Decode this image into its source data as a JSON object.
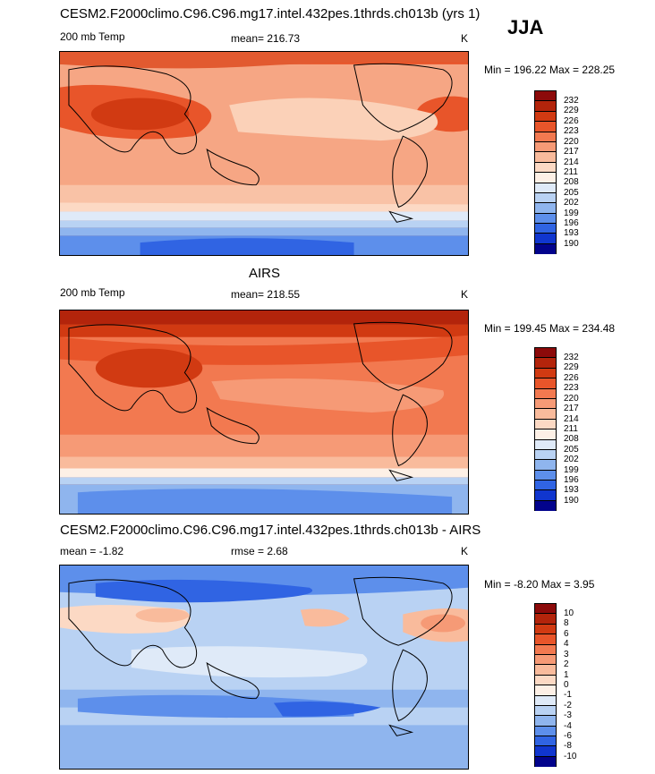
{
  "season": "JJA",
  "panels": [
    {
      "title": "CESM2.F2000climo.C96.C96.mg17.intel.432pes.1thrds.ch013b (yrs 1)",
      "left_label": "200 mb Temp",
      "center_label": "mean= 216.73",
      "units": "K",
      "minmax": "Min = 196.22 Max = 228.25"
    },
    {
      "title": "AIRS",
      "left_label": "200 mb Temp",
      "center_label": "mean= 218.55",
      "units": "K",
      "minmax": "Min = 199.45 Max = 234.48"
    },
    {
      "title": "CESM2.F2000climo.C96.C96.mg17.intel.432pes.1thrds.ch013b - AIRS",
      "left_label": "mean =  -1.82",
      "center_label": "rmse =   2.68",
      "units": "K",
      "minmax": "Min =  -8.20 Max =    3.95"
    }
  ],
  "colorbar_abs": {
    "ticks": [
      "232",
      "229",
      "226",
      "223",
      "220",
      "217",
      "214",
      "211",
      "208",
      "205",
      "202",
      "199",
      "196",
      "193",
      "190"
    ],
    "colors": [
      "#8c0a0a",
      "#b3240b",
      "#d13a12",
      "#e8552a",
      "#f27950",
      "#f69a76",
      "#f9bb9c",
      "#fcd9c4",
      "#fdf0e6",
      "#dfeaf8",
      "#b9d2f3",
      "#8fb5ee",
      "#5d8feb",
      "#3064e3",
      "#1036cf",
      "#02038c"
    ]
  },
  "colorbar_diff": {
    "ticks": [
      "10",
      "8",
      "6",
      "4",
      "3",
      "2",
      "1",
      "0",
      "-1",
      "-2",
      "-3",
      "-4",
      "-6",
      "-8",
      "-10"
    ],
    "colors": [
      "#8c0a0a",
      "#b3240b",
      "#d13a12",
      "#e8552a",
      "#f27950",
      "#f69a76",
      "#f9bb9c",
      "#fcd9c4",
      "#fdf0e6",
      "#dfeaf8",
      "#b9d2f3",
      "#8fb5ee",
      "#5d8feb",
      "#3064e3",
      "#1036cf",
      "#02038c"
    ]
  }
}
